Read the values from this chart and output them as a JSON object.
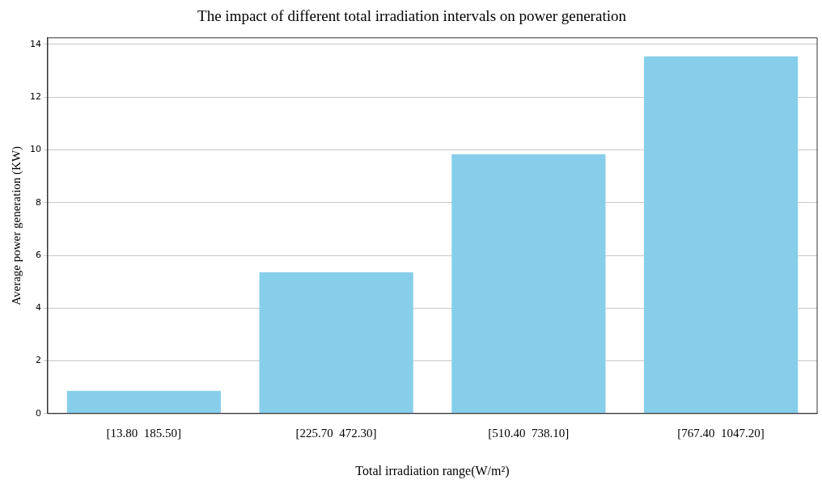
{
  "chart_data": {
    "type": "bar",
    "title": "The impact of different total irradiation intervals on power generation",
    "xlabel": "Total irradiation range(W/m²)",
    "ylabel": "Average power generation (KW)",
    "categories": [
      "[13.80  185.50]",
      "[225.70  472.30]",
      "[510.40  738.10]",
      "[767.40  1047.20]"
    ],
    "values": [
      0.86,
      5.36,
      9.83,
      13.55
    ],
    "color": "#87ceeb",
    "ylim": [
      0,
      14.25
    ],
    "yticks": [
      0,
      2,
      4,
      6,
      8,
      10,
      12,
      14
    ],
    "grid": "y",
    "legend": false
  }
}
